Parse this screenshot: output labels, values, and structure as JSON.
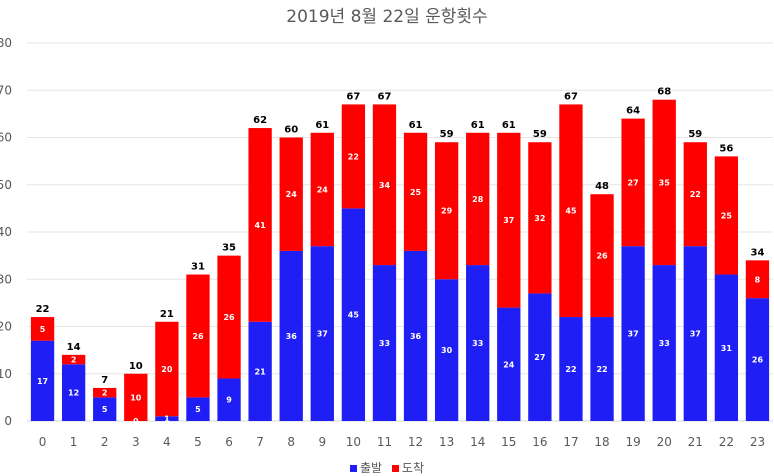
{
  "chart_data": {
    "type": "bar",
    "stacked": true,
    "title": "2019년 8월 22일 운항횟수",
    "categories": [
      "0",
      "1",
      "2",
      "3",
      "4",
      "5",
      "6",
      "7",
      "8",
      "9",
      "10",
      "11",
      "12",
      "13",
      "14",
      "15",
      "16",
      "17",
      "18",
      "19",
      "20",
      "21",
      "22",
      "23"
    ],
    "series": [
      {
        "name": "출발",
        "color": "#1f1ff5",
        "values": [
          17,
          12,
          5,
          0,
          1,
          5,
          9,
          21,
          36,
          37,
          45,
          33,
          36,
          30,
          33,
          24,
          27,
          22,
          22,
          37,
          33,
          37,
          31,
          26
        ]
      },
      {
        "name": "도착",
        "color": "#ff0000",
        "values": [
          5,
          2,
          2,
          10,
          20,
          26,
          26,
          41,
          24,
          24,
          22,
          34,
          25,
          29,
          28,
          37,
          32,
          45,
          26,
          27,
          35,
          22,
          25,
          8
        ]
      }
    ],
    "totals": [
      22,
      14,
      7,
      10,
      21,
      31,
      35,
      62,
      60,
      61,
      67,
      67,
      61,
      59,
      61,
      61,
      59,
      67,
      48,
      64,
      68,
      59,
      56,
      34
    ],
    "ylim": [
      0,
      80
    ],
    "yticks": [
      0,
      10,
      20,
      30,
      40,
      50,
      60,
      70,
      80
    ],
    "grid": true,
    "legend": "bottom",
    "xlabel": "",
    "ylabel": ""
  }
}
